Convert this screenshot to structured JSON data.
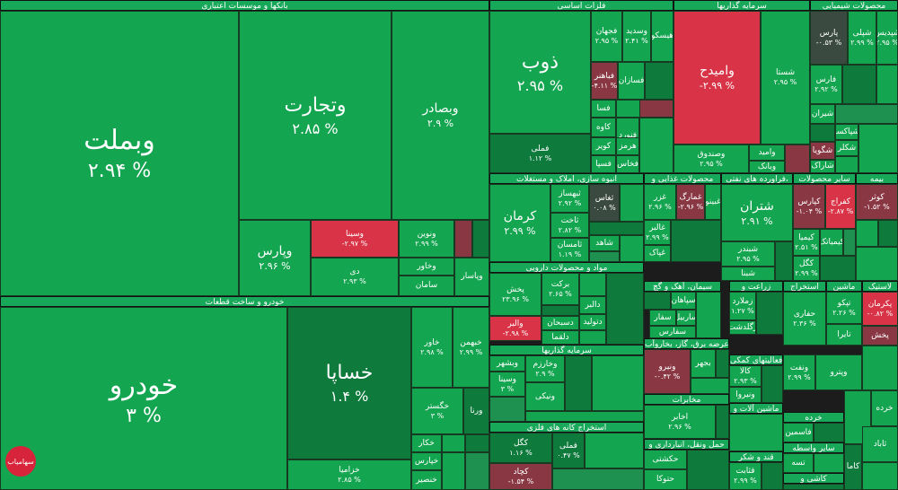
{
  "sectors": [
    {
      "name": "بانکها و موسسات اعتباری"
    },
    {
      "name": "خودرو و ساخت قطعات"
    },
    {
      "name": "فلزات اساسی"
    },
    {
      "name": "سرمایه گذاریها"
    },
    {
      "name": "محصولات شیمیایی"
    },
    {
      "name": "انبوه سازی، املاک و مستغلات"
    },
    {
      "name": "محصولات غذایی و"
    },
    {
      "name": "فراورده های نفتی،"
    },
    {
      "name": "سایر محصولات"
    },
    {
      "name": "بیمه"
    },
    {
      "name": "مواد و محصولات دارویی"
    },
    {
      "name": "سیمان، آهک و گچ"
    },
    {
      "name": "زراعت و"
    },
    {
      "name": "استخراج"
    },
    {
      "name": "ماشین"
    },
    {
      "name": "لاستیک"
    },
    {
      "name": "سرمایه گذاریها"
    },
    {
      "name": "عرضه برق، گاز، بخاروآب"
    },
    {
      "name": "فعالیتهای کمکی"
    },
    {
      "name": "مخابرات"
    },
    {
      "name": "استخراج کانه های فلزی"
    },
    {
      "name": "حمل ونقل، انبارداری و"
    },
    {
      "name": "قند و شکر"
    },
    {
      "name": "ماشین آلات و"
    },
    {
      "name": "خرده"
    },
    {
      "name": "سایر واسطه"
    },
    {
      "name": "کاشی و"
    }
  ],
  "tiles": [
    {
      "name": "وبملت",
      "pct": "۲.۹۴ %"
    },
    {
      "name": "وتجارت",
      "pct": "۲.۸۵ %"
    },
    {
      "name": "وبصادر",
      "pct": "۲.۹ %"
    },
    {
      "name": "وپارس",
      "pct": "۲.۹۶ %"
    },
    {
      "name": "وسینا",
      "pct": "-۲.۹۷ %"
    },
    {
      "name": "دی",
      "pct": "۲.۹۳ %"
    },
    {
      "name": "ونوین",
      "pct": "۲.۹۹ %"
    },
    {
      "name": "وخاور",
      "pct": ""
    },
    {
      "name": "وپاسار",
      "pct": ""
    },
    {
      "name": "سامان",
      "pct": ""
    },
    {
      "name": "خودرو",
      "pct": "۳ %"
    },
    {
      "name": "خساپا",
      "pct": "۱.۴ %"
    },
    {
      "name": "خاور",
      "pct": "۲.۹۸ %"
    },
    {
      "name": "خبهمن",
      "pct": "۲.۹۹ %"
    },
    {
      "name": "خگستر",
      "pct": "۳ %"
    },
    {
      "name": "ورنا",
      "pct": ""
    },
    {
      "name": "خزامیا",
      "pct": "۲.۸۵ %"
    },
    {
      "name": "خکار",
      "pct": ""
    },
    {
      "name": "خپارس",
      "pct": ""
    },
    {
      "name": "خنصیر",
      "pct": ""
    },
    {
      "name": "ذوب",
      "pct": "۲.۹۵ %"
    },
    {
      "name": "فجهان",
      "pct": "۲.۹۵ %"
    },
    {
      "name": "وسدید",
      "pct": "۲.۴۱ %"
    },
    {
      "name": "هیسکو",
      "pct": ""
    },
    {
      "name": "فباهنر",
      "pct": "-۴.۱۱ %"
    },
    {
      "name": "فسازان",
      "pct": ""
    },
    {
      "name": "فسا",
      "pct": ""
    },
    {
      "name": "کاوه",
      "pct": ""
    },
    {
      "name": "فنورد",
      "pct": ""
    },
    {
      "name": "کویر",
      "pct": ""
    },
    {
      "name": "هرمز",
      "pct": ""
    },
    {
      "name": "فخاس",
      "pct": ""
    },
    {
      "name": "فسپا",
      "pct": ""
    },
    {
      "name": "فملی",
      "pct": "۱.۱۲ %"
    },
    {
      "name": "وامیدح",
      "pct": "-۲.۹۹ %"
    },
    {
      "name": "شستا",
      "pct": "۲.۹۵ %"
    },
    {
      "name": "وصندوق",
      "pct": "۲.۹۵ %"
    },
    {
      "name": "وامید",
      "pct": ""
    },
    {
      "name": "وبانک",
      "pct": ""
    },
    {
      "name": "پارس",
      "pct": "-۰.۵۳ %"
    },
    {
      "name": "شپلی",
      "pct": "۲.۹۹ %"
    },
    {
      "name": "شپدیس",
      "pct": "۲.۹۵ %"
    },
    {
      "name": "فارس",
      "pct": "۲.۹۲ %"
    },
    {
      "name": "شیران",
      "pct": ""
    },
    {
      "name": "شپاکسا",
      "pct": ""
    },
    {
      "name": "شکلر",
      "pct": ""
    },
    {
      "name": "شگویا",
      "pct": ""
    },
    {
      "name": "شاراک",
      "pct": ""
    },
    {
      "name": "جم",
      "pct": ""
    },
    {
      "name": "نوری",
      "pct": ""
    },
    {
      "name": "کرمان",
      "pct": "۲.۹۹ %"
    },
    {
      "name": "ثبهساز",
      "pct": "۲.۹۲ %"
    },
    {
      "name": "ثاخت",
      "pct": "۲.۸۲ %"
    },
    {
      "name": "ثامسان",
      "pct": "۱.۱۹ %"
    },
    {
      "name": "ثغاس",
      "pct": "۰.۰۸ %"
    },
    {
      "name": "شاهد",
      "pct": ""
    },
    {
      "name": "ثشاهد",
      "pct": ""
    },
    {
      "name": "غزر",
      "pct": "۲.۹۶ %"
    },
    {
      "name": "غمارگ",
      "pct": "-۲.۹۶ %"
    },
    {
      "name": "غبینو",
      "pct": ""
    },
    {
      "name": "غپاک",
      "pct": ""
    },
    {
      "name": "غالبر",
      "pct": "۲.۹۹ %"
    },
    {
      "name": "شتران",
      "pct": "۲.۹۱ %"
    },
    {
      "name": "شبندر",
      "pct": "۲.۹۵ %"
    },
    {
      "name": "شبنا",
      "pct": ""
    },
    {
      "name": "کپارس",
      "pct": "-۱.۰۴ %"
    },
    {
      "name": "کفراج",
      "pct": "-۲.۸۷ %"
    },
    {
      "name": "کیمیا",
      "pct": "۲.۵۱ %"
    },
    {
      "name": "کیمیاتک",
      "pct": ""
    },
    {
      "name": "کگل",
      "pct": "۲.۹۹ %"
    },
    {
      "name": "کوثر",
      "pct": "-۱.۵۲ %"
    },
    {
      "name": "پخش",
      "pct": "۲۳.۹۶ %"
    },
    {
      "name": "برکت",
      "pct": "۲.۶۵ %"
    },
    {
      "name": "دالبر",
      "pct": ""
    },
    {
      "name": "دتولید",
      "pct": ""
    },
    {
      "name": "دسبحان",
      "pct": ""
    },
    {
      "name": "والبر",
      "pct": "-۲.۹۸ %"
    },
    {
      "name": "دلقما",
      "pct": ""
    },
    {
      "name": "سپاهان",
      "pct": ""
    },
    {
      "name": "سفارس",
      "pct": ""
    },
    {
      "name": "سفار",
      "pct": ""
    },
    {
      "name": "ساربیل",
      "pct": ""
    },
    {
      "name": "زملارد",
      "pct": "۱.۲۷ %"
    },
    {
      "name": "زگلدشت",
      "pct": ""
    },
    {
      "name": "حفاری",
      "pct": "۲.۳۶ %"
    },
    {
      "name": "تپکو",
      "pct": "۲.۲۶ %"
    },
    {
      "name": "تایرا",
      "pct": ""
    },
    {
      "name": "پکرمان",
      "pct": "-۰.۸۲ %"
    },
    {
      "name": "پخش",
      "pct": ""
    },
    {
      "name": "وبشهر",
      "pct": ""
    },
    {
      "name": "وخارزم",
      "pct": "۲.۹ %"
    },
    {
      "name": "وسینا",
      "pct": "۳ %"
    },
    {
      "name": "ونیکی",
      "pct": ""
    },
    {
      "name": "ونیرو",
      "pct": "-۰.۴۲ %"
    },
    {
      "name": "بجهر",
      "pct": ""
    },
    {
      "name": "ونفت",
      "pct": "۲.۹۹ %"
    },
    {
      "name": "وپترو",
      "pct": ""
    },
    {
      "name": "کالا",
      "pct": "۲.۹۳ %"
    },
    {
      "name": "ونیروا",
      "pct": ""
    },
    {
      "name": "اخابر",
      "pct": "۲.۹۶ %"
    },
    {
      "name": "کگل",
      "pct": "۱.۱۶ %"
    },
    {
      "name": "کچاد",
      "pct": "-۱.۵۴ %"
    },
    {
      "name": "فملی",
      "pct": "۰.۴۷ %"
    },
    {
      "name": "کنور",
      "pct": ""
    },
    {
      "name": "حکشتی",
      "pct": ""
    },
    {
      "name": "حتوکا",
      "pct": ""
    },
    {
      "name": "قثابت",
      "pct": "۲.۹۹ %"
    },
    {
      "name": "فاسمین",
      "pct": ""
    },
    {
      "name": "خرده",
      "pct": ""
    },
    {
      "name": "ثاباد",
      "pct": ""
    },
    {
      "name": "کاما",
      "pct": ""
    },
    {
      "name": "تسه",
      "pct": ""
    }
  ],
  "logo": {
    "text": "سهامیاب"
  }
}
